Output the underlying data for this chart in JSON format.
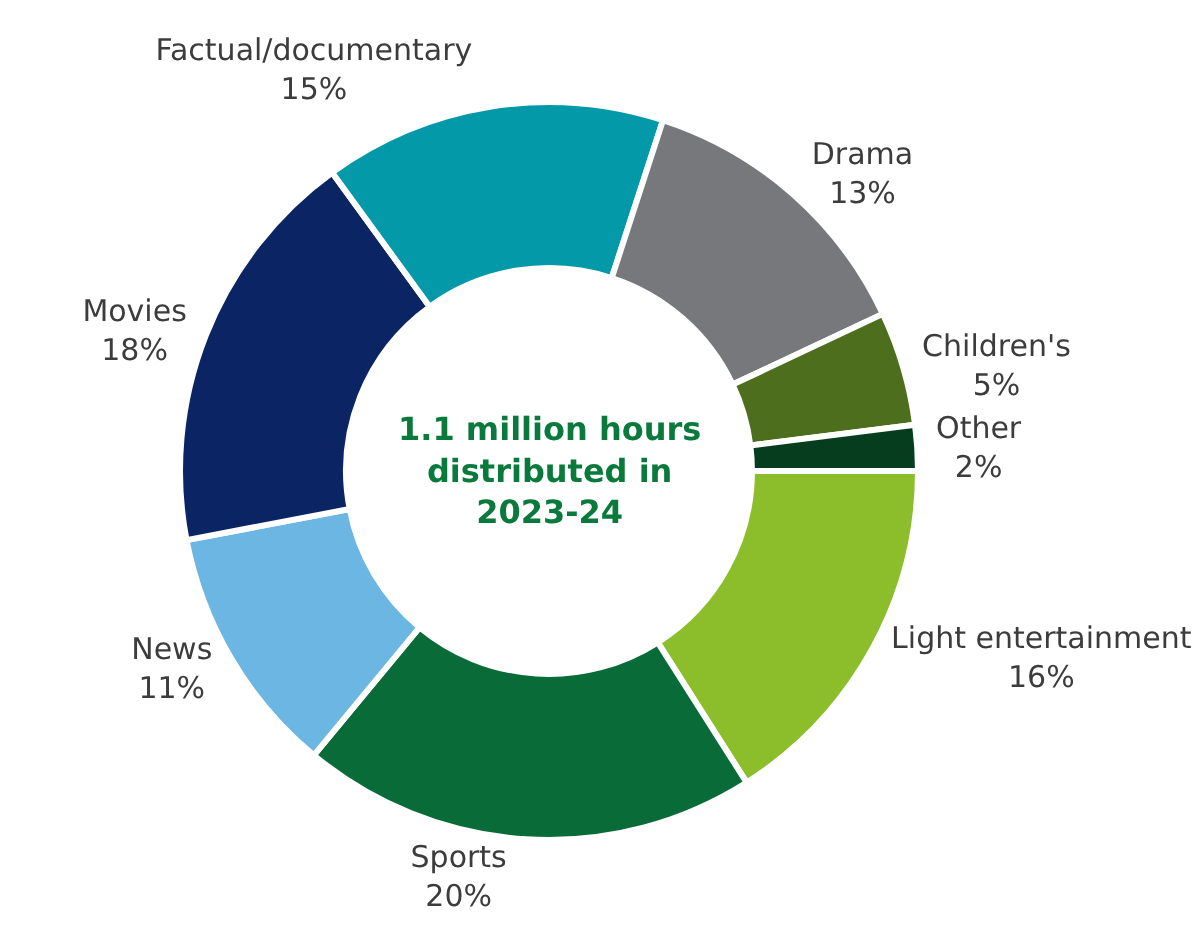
{
  "chart_data": {
    "type": "donut",
    "categories": [
      "Light entertainment",
      "Sports",
      "News",
      "Movies",
      "Factual/documentary",
      "Drama",
      "Children's",
      "Other"
    ],
    "values": [
      16,
      20,
      11,
      18,
      15,
      13,
      5,
      2
    ],
    "value_labels": [
      "16%",
      "20%",
      "11%",
      "18%",
      "15%",
      "13%",
      "5%",
      "2%"
    ],
    "colors": [
      "#8bbe2a",
      "#086b38",
      "#6cb6e4",
      "#0b2463",
      "#0499a9",
      "#76787b",
      "#4d6e1c",
      "#073d1f"
    ],
    "annotations": [
      "1.1 million hours distributed in 2023-24"
    ],
    "legend": false
  }
}
